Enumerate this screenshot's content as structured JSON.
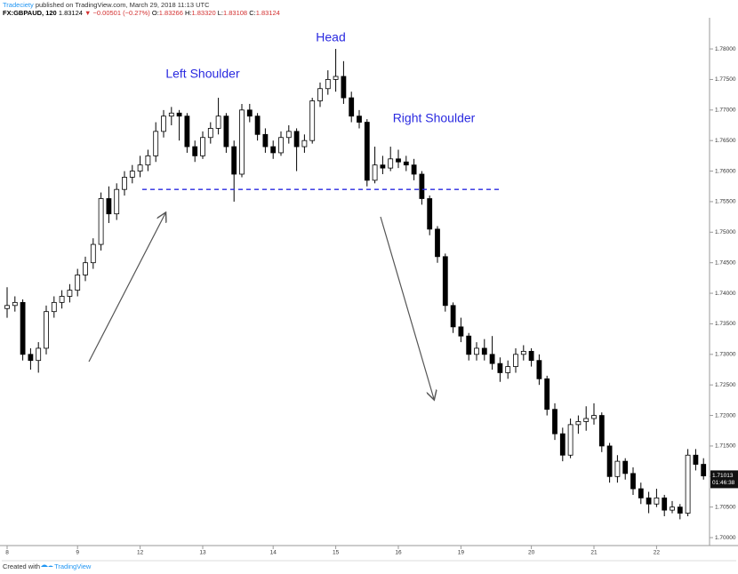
{
  "header": {
    "author": "Tradeciety",
    "published": "published on TradingView.com, March 29, 2018 11:13 UTC",
    "symbol": "FX:GBPAUD, 120",
    "price": "1.83124",
    "change": "▼ −0.00501 (−0.27%)",
    "o_label": "O:",
    "o": "1.83266",
    "h_label": "H:",
    "h": "1.83320",
    "l_label": "L:",
    "l": "1.83108",
    "c_label": "C:",
    "c": "1.83124"
  },
  "footer": {
    "text": "Created with",
    "brand": "TradingView"
  },
  "chart_data": {
    "type": "candlestick",
    "annotations": {
      "head": "Head",
      "left_shoulder": "Left Shoulder",
      "right_shoulder": "Right Shoulder"
    },
    "neckline": 1.757,
    "last_price": 1.71013,
    "countdown": "01:46:38",
    "up_color": "#ffffff",
    "down_color": "#000000",
    "neckline_color": "#2a2ae0",
    "ylim": [
      1.6987,
      1.7851
    ],
    "yticks": [
      {
        "value": 1.7,
        "label": "1.70000"
      },
      {
        "value": 1.705,
        "label": "1.70500"
      },
      {
        "value": 1.71,
        "label": "1.71000"
      },
      {
        "value": 1.715,
        "label": "1.71500"
      },
      {
        "value": 1.72,
        "label": "1.72000"
      },
      {
        "value": 1.725,
        "label": "1.72500"
      },
      {
        "value": 1.73,
        "label": "1.73000"
      },
      {
        "value": 1.735,
        "label": "1.73500"
      },
      {
        "value": 1.74,
        "label": "1.74000"
      },
      {
        "value": 1.745,
        "label": "1.74500"
      },
      {
        "value": 1.75,
        "label": "1.75000"
      },
      {
        "value": 1.755,
        "label": "1.75500"
      },
      {
        "value": 1.76,
        "label": "1.76000"
      },
      {
        "value": 1.765,
        "label": "1.76500"
      },
      {
        "value": 1.77,
        "label": "1.77000"
      },
      {
        "value": 1.775,
        "label": "1.77500"
      },
      {
        "value": 1.78,
        "label": "1.78000"
      }
    ],
    "categories": [
      "8",
      null,
      null,
      null,
      null,
      null,
      null,
      null,
      null,
      "9",
      null,
      null,
      null,
      null,
      null,
      null,
      null,
      "12",
      null,
      null,
      null,
      null,
      null,
      null,
      null,
      "13",
      null,
      null,
      null,
      null,
      null,
      null,
      null,
      null,
      "14",
      null,
      null,
      null,
      null,
      null,
      null,
      null,
      "15",
      null,
      null,
      null,
      null,
      null,
      null,
      null,
      "16",
      null,
      null,
      null,
      null,
      null,
      null,
      null,
      "19",
      null,
      null,
      null,
      null,
      null,
      null,
      null,
      null,
      "20",
      null,
      null,
      null,
      null,
      null,
      null,
      null,
      "21",
      null,
      null,
      null,
      null,
      null,
      null,
      null,
      "22",
      null,
      null,
      null,
      null,
      null,
      null
    ],
    "ohlc": [
      [
        1.7375,
        1.741,
        1.736,
        1.738
      ],
      [
        1.738,
        1.7395,
        1.737,
        1.7385
      ],
      [
        1.7385,
        1.739,
        1.729,
        1.73
      ],
      [
        1.73,
        1.731,
        1.7275,
        1.729
      ],
      [
        1.729,
        1.732,
        1.727,
        1.731
      ],
      [
        1.731,
        1.738,
        1.73,
        1.737
      ],
      [
        1.737,
        1.7395,
        1.736,
        1.7385
      ],
      [
        1.7385,
        1.7405,
        1.7375,
        1.7395
      ],
      [
        1.7395,
        1.7415,
        1.7385,
        1.7405
      ],
      [
        1.7405,
        1.744,
        1.7395,
        1.743
      ],
      [
        1.743,
        1.746,
        1.742,
        1.745
      ],
      [
        1.745,
        1.749,
        1.744,
        1.748
      ],
      [
        1.748,
        1.7565,
        1.747,
        1.7555
      ],
      [
        1.7555,
        1.7575,
        1.7515,
        1.753
      ],
      [
        1.753,
        1.758,
        1.752,
        1.757
      ],
      [
        1.757,
        1.76,
        1.756,
        1.759
      ],
      [
        1.759,
        1.761,
        1.758,
        1.76
      ],
      [
        1.76,
        1.7625,
        1.759,
        1.761
      ],
      [
        1.761,
        1.7635,
        1.76,
        1.7625
      ],
      [
        1.7625,
        1.768,
        1.7615,
        1.7665
      ],
      [
        1.7665,
        1.77,
        1.7655,
        1.769
      ],
      [
        1.769,
        1.7705,
        1.7675,
        1.7695
      ],
      [
        1.7695,
        1.77,
        1.765,
        1.769
      ],
      [
        1.769,
        1.7695,
        1.763,
        1.764
      ],
      [
        1.764,
        1.765,
        1.7615,
        1.7625
      ],
      [
        1.7625,
        1.7665,
        1.762,
        1.7655
      ],
      [
        1.7655,
        1.768,
        1.7645,
        1.767
      ],
      [
        1.767,
        1.772,
        1.766,
        1.769
      ],
      [
        1.769,
        1.7695,
        1.763,
        1.764
      ],
      [
        1.764,
        1.765,
        1.755,
        1.7595
      ],
      [
        1.7595,
        1.771,
        1.759,
        1.77
      ],
      [
        1.77,
        1.771,
        1.768,
        1.769
      ],
      [
        1.769,
        1.7695,
        1.765,
        1.766
      ],
      [
        1.766,
        1.767,
        1.763,
        1.764
      ],
      [
        1.764,
        1.765,
        1.762,
        1.763
      ],
      [
        1.763,
        1.7665,
        1.7625,
        1.7655
      ],
      [
        1.7655,
        1.7675,
        1.7645,
        1.7665
      ],
      [
        1.7665,
        1.767,
        1.76,
        1.764
      ],
      [
        1.764,
        1.766,
        1.763,
        1.765
      ],
      [
        1.765,
        1.772,
        1.7645,
        1.7715
      ],
      [
        1.7715,
        1.7745,
        1.7705,
        1.7735
      ],
      [
        1.7735,
        1.7765,
        1.7725,
        1.775
      ],
      [
        1.775,
        1.78,
        1.773,
        1.7755
      ],
      [
        1.7755,
        1.778,
        1.771,
        1.772
      ],
      [
        1.772,
        1.773,
        1.768,
        1.769
      ],
      [
        1.769,
        1.77,
        1.767,
        1.768
      ],
      [
        1.768,
        1.7685,
        1.7575,
        1.7585
      ],
      [
        1.7585,
        1.764,
        1.758,
        1.761
      ],
      [
        1.761,
        1.7625,
        1.7595,
        1.7605
      ],
      [
        1.7605,
        1.764,
        1.76,
        1.762
      ],
      [
        1.762,
        1.7635,
        1.7605,
        1.7615
      ],
      [
        1.7615,
        1.7625,
        1.76,
        1.761
      ],
      [
        1.761,
        1.762,
        1.7585,
        1.7595
      ],
      [
        1.7595,
        1.76,
        1.7545,
        1.7555
      ],
      [
        1.7555,
        1.756,
        1.7495,
        1.7505
      ],
      [
        1.7505,
        1.751,
        1.745,
        1.746
      ],
      [
        1.746,
        1.7465,
        1.737,
        1.738
      ],
      [
        1.738,
        1.7385,
        1.7335,
        1.7345
      ],
      [
        1.7345,
        1.736,
        1.732,
        1.733
      ],
      [
        1.733,
        1.7335,
        1.729,
        1.73
      ],
      [
        1.73,
        1.732,
        1.729,
        1.731
      ],
      [
        1.731,
        1.7325,
        1.729,
        1.73
      ],
      [
        1.73,
        1.733,
        1.7275,
        1.7285
      ],
      [
        1.7285,
        1.7295,
        1.7255,
        1.727
      ],
      [
        1.727,
        1.729,
        1.726,
        1.728
      ],
      [
        1.728,
        1.731,
        1.727,
        1.73
      ],
      [
        1.73,
        1.7315,
        1.729,
        1.7305
      ],
      [
        1.7305,
        1.731,
        1.728,
        1.729
      ],
      [
        1.729,
        1.73,
        1.725,
        1.726
      ],
      [
        1.726,
        1.7265,
        1.72,
        1.721
      ],
      [
        1.721,
        1.722,
        1.716,
        1.717
      ],
      [
        1.717,
        1.718,
        1.7125,
        1.7135
      ],
      [
        1.7135,
        1.7195,
        1.713,
        1.7185
      ],
      [
        1.7185,
        1.72,
        1.717,
        1.719
      ],
      [
        1.719,
        1.7215,
        1.7175,
        1.7195
      ],
      [
        1.7195,
        1.722,
        1.7185,
        1.72
      ],
      [
        1.72,
        1.7205,
        1.714,
        1.715
      ],
      [
        1.715,
        1.7155,
        1.709,
        1.71
      ],
      [
        1.71,
        1.7135,
        1.709,
        1.7125
      ],
      [
        1.7125,
        1.713,
        1.7095,
        1.7105
      ],
      [
        1.7105,
        1.7115,
        1.707,
        1.708
      ],
      [
        1.708,
        1.709,
        1.7055,
        1.7065
      ],
      [
        1.7065,
        1.7075,
        1.704,
        1.7055
      ],
      [
        1.7055,
        1.708,
        1.705,
        1.7065
      ],
      [
        1.7065,
        1.707,
        1.7035,
        1.7045
      ],
      [
        1.7045,
        1.706,
        1.704,
        1.705
      ],
      [
        1.705,
        1.7055,
        1.703,
        1.704
      ],
      [
        1.704,
        1.7145,
        1.7035,
        1.7135
      ],
      [
        1.7135,
        1.7145,
        1.711,
        1.712
      ],
      [
        1.712,
        1.713,
        1.7095,
        1.7101
      ]
    ]
  }
}
